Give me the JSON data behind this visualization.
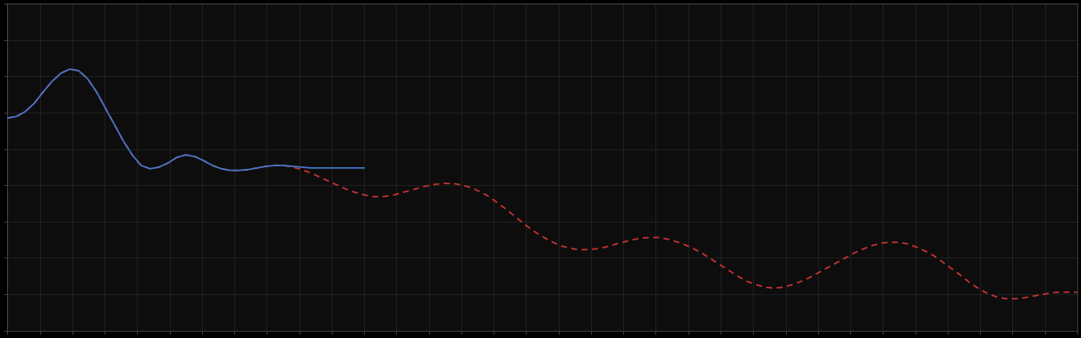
{
  "background_color": "#000000",
  "plot_bg_color": "#0d0d0d",
  "grid_color": "#3a3a3a",
  "spine_color": "#555555",
  "fig_width": 12.09,
  "fig_height": 3.78,
  "dpi": 100,
  "blue_line_color": "#4477cc",
  "red_line_color": "#cc3333",
  "blue_x": [
    0,
    3,
    6,
    9,
    12,
    15,
    18,
    21,
    24,
    27,
    30,
    33,
    36,
    39,
    42,
    45,
    48,
    51,
    54,
    57,
    60,
    63,
    66,
    69,
    72,
    75,
    78,
    81,
    84,
    87,
    90,
    93,
    96,
    99,
    102,
    105,
    108,
    111,
    114,
    117,
    120
  ],
  "blue_y": [
    6.1,
    6.12,
    6.18,
    6.28,
    6.42,
    6.55,
    6.65,
    6.7,
    6.68,
    6.58,
    6.42,
    6.22,
    6.02,
    5.82,
    5.65,
    5.52,
    5.48,
    5.5,
    5.55,
    5.62,
    5.65,
    5.63,
    5.58,
    5.52,
    5.48,
    5.46,
    5.46,
    5.47,
    5.49,
    5.51,
    5.52,
    5.52,
    5.51,
    5.5,
    5.49,
    5.49,
    5.49,
    5.49,
    5.49,
    5.49,
    5.49
  ],
  "red_x": [
    0,
    3,
    6,
    9,
    12,
    15,
    18,
    21,
    24,
    27,
    30,
    33,
    36,
    39,
    42,
    45,
    48,
    51,
    54,
    57,
    60,
    63,
    66,
    69,
    72,
    75,
    78,
    81,
    84,
    87,
    90,
    93,
    96,
    99,
    102,
    105,
    108,
    111,
    114,
    117,
    120,
    123,
    126,
    129,
    132,
    135,
    138,
    141,
    144,
    147,
    150,
    153,
    156,
    159,
    162,
    165,
    168,
    171,
    174,
    177,
    180,
    183,
    186,
    189,
    192,
    195,
    198,
    201,
    204,
    207,
    210,
    213,
    216,
    219,
    222,
    225,
    228,
    231,
    234,
    237,
    240,
    243,
    246,
    249,
    252,
    255,
    258,
    261,
    264,
    267,
    270,
    273,
    276,
    279,
    282,
    285,
    288,
    291,
    294,
    297,
    300,
    303,
    306,
    309,
    312,
    315,
    318,
    321,
    324,
    327,
    330,
    333,
    336,
    339,
    342,
    345,
    348,
    351,
    354,
    357,
    360
  ],
  "red_y": [
    6.1,
    6.12,
    6.18,
    6.28,
    6.42,
    6.55,
    6.65,
    6.7,
    6.68,
    6.58,
    6.42,
    6.22,
    6.02,
    5.82,
    5.65,
    5.52,
    5.48,
    5.5,
    5.55,
    5.62,
    5.65,
    5.63,
    5.58,
    5.52,
    5.48,
    5.46,
    5.46,
    5.47,
    5.49,
    5.51,
    5.52,
    5.52,
    5.5,
    5.47,
    5.43,
    5.38,
    5.33,
    5.28,
    5.23,
    5.19,
    5.16,
    5.14,
    5.14,
    5.15,
    5.18,
    5.21,
    5.24,
    5.27,
    5.29,
    5.3,
    5.3,
    5.28,
    5.25,
    5.2,
    5.14,
    5.06,
    4.98,
    4.89,
    4.8,
    4.72,
    4.65,
    4.59,
    4.54,
    4.51,
    4.49,
    4.49,
    4.5,
    4.52,
    4.55,
    4.58,
    4.61,
    4.63,
    4.64,
    4.64,
    4.62,
    4.59,
    4.55,
    4.5,
    4.44,
    4.37,
    4.3,
    4.23,
    4.16,
    4.1,
    4.06,
    4.03,
    4.02,
    4.03,
    4.06,
    4.1,
    4.15,
    4.21,
    4.27,
    4.33,
    4.39,
    4.45,
    4.5,
    4.54,
    4.57,
    4.58,
    4.58,
    4.56,
    4.52,
    4.47,
    4.41,
    4.33,
    4.25,
    4.17,
    4.08,
    4.01,
    3.95,
    3.91,
    3.89,
    3.89,
    3.9,
    3.92,
    3.94,
    3.96,
    3.97,
    3.97,
    3.97
  ],
  "xlim": [
    0,
    360
  ],
  "ylim": [
    3.5,
    7.5
  ],
  "n_xgrid": 33,
  "n_ygrid": 9,
  "linewidth_blue": 1.2,
  "linewidth_red": 1.2
}
